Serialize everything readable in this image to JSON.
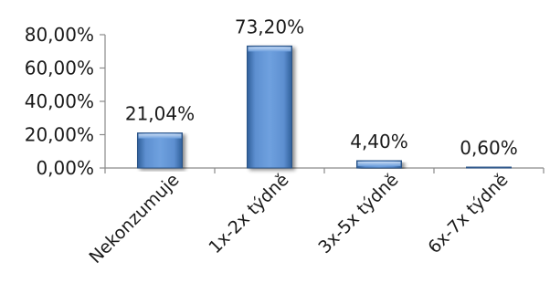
{
  "chart_data": {
    "type": "bar",
    "title": "",
    "xlabel": "",
    "ylabel": "",
    "categories": [
      "Nekonzumuje",
      "1x-2x týdně",
      "3x-5x týdně",
      "6x-7x týdně"
    ],
    "values": [
      21.04,
      73.2,
      4.4,
      0.6
    ],
    "data_labels": [
      "21,04%",
      "73,20%",
      "4,40%",
      "0,60%"
    ],
    "ylim": [
      0,
      80
    ],
    "y_ticks": [
      0,
      20,
      40,
      60,
      80
    ],
    "y_tick_labels": [
      "0,00%",
      "20,00%",
      "40,00%",
      "60,00%",
      "80,00%"
    ],
    "grid": false,
    "legend": "none",
    "bar_color": "#4f81bd"
  }
}
